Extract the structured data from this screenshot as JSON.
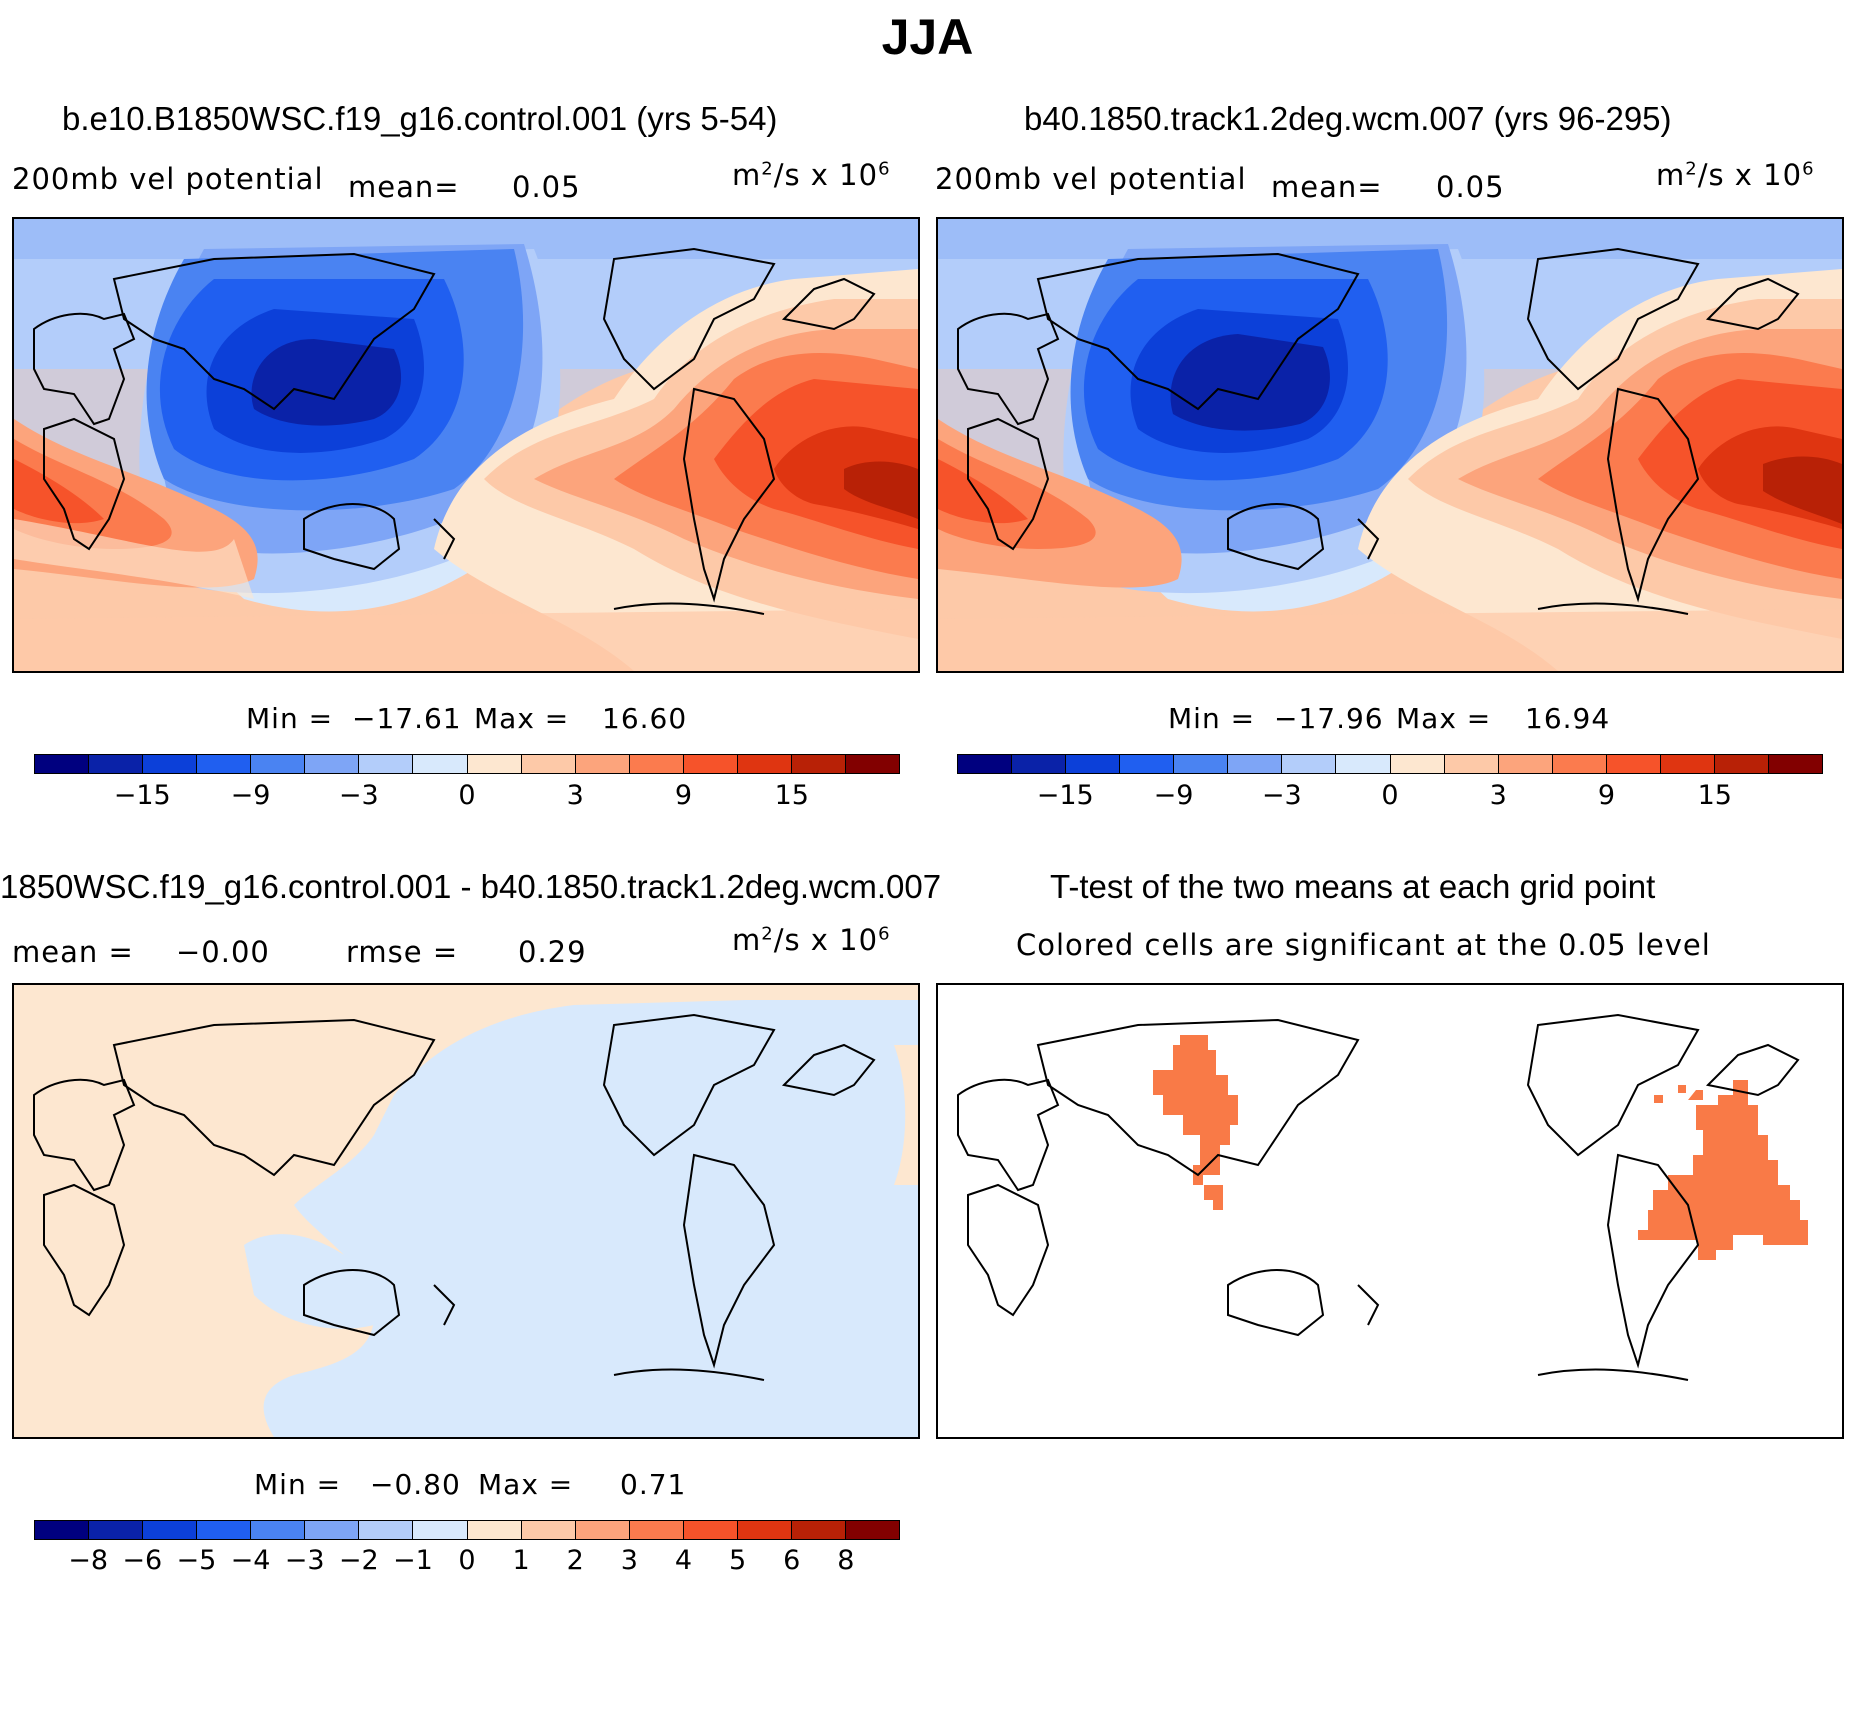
{
  "title": "JJA",
  "units_prefix": "m",
  "units_mid": "/s x 10",
  "units_sup1": "2",
  "units_sup2": "6",
  "panels": [
    {
      "title": "b.e10.B1850WSC.f19_g16.control.001 (yrs 5-54)",
      "variable": "200mb vel potential",
      "mean_label": "mean=",
      "mean_value": "0.05",
      "min_label": "Min =",
      "min_value": "−17.61",
      "max_label": "Max =",
      "max_value": "16.60"
    },
    {
      "title": "b40.1850.track1.2deg.wcm.007 (yrs 96-295)",
      "variable": "200mb vel potential",
      "mean_label": "mean=",
      "mean_value": "0.05",
      "min_label": "Min =",
      "min_value": "−17.96",
      "max_label": "Max =",
      "max_value": "16.94"
    },
    {
      "title": "1850WSC.f19_g16.control.001 - b40.1850.track1.2deg.wcm.007",
      "mean_label": "mean =",
      "mean_value": "−0.00",
      "rmse_label": "rmse =",
      "rmse_value": "0.29",
      "min_label": "Min =",
      "min_value": "−0.80",
      "max_label": "Max =",
      "max_value": "0.71"
    },
    {
      "title": "T-test of the two means at each grid point",
      "subtitle": "Colored cells are significant at the 0.05 level"
    }
  ],
  "colorbar_main": {
    "colors": [
      "#00007f",
      "#0a22a8",
      "#0c40d9",
      "#205ff0",
      "#4a83f2",
      "#7ea5f6",
      "#b3cdfa",
      "#d8e9fc",
      "#fde7d0",
      "#fdc9a8",
      "#fca47c",
      "#fb7b4e",
      "#f6532a",
      "#df3511",
      "#b82106",
      "#820000"
    ],
    "ticks": [
      "−15",
      "−9",
      "−3",
      "0",
      "3",
      "9",
      "15"
    ]
  },
  "colorbar_diff": {
    "colors": [
      "#00007f",
      "#0a22a8",
      "#0c40d9",
      "#205ff0",
      "#4a83f2",
      "#7ea5f6",
      "#b3cdfa",
      "#d8e9fc",
      "#fde7d0",
      "#fdc9a8",
      "#fca47c",
      "#fb7b4e",
      "#f6532a",
      "#df3511",
      "#b82106",
      "#820000"
    ],
    "ticks": [
      "−8",
      "−6",
      "−5",
      "−4",
      "−3",
      "−2",
      "−1",
      "0",
      "1",
      "2",
      "3",
      "4",
      "5",
      "6",
      "8"
    ]
  },
  "significance_color": "#f97a47"
}
